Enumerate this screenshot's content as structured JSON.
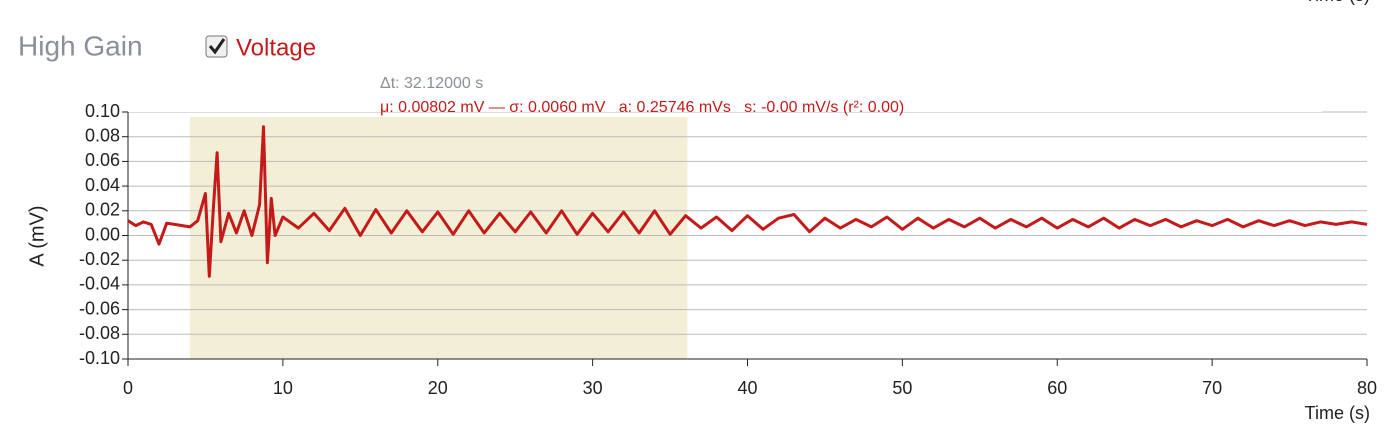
{
  "chart_data": {
    "type": "line",
    "title": "High Gain",
    "x_label": "Time (s)",
    "y_label": "A (mV)",
    "annotations": [
      "Δt: 32.12000 s",
      "μ: 0.00802 mV — σ: 0.0060 mV   a: 0.25746 mVs   s: -0.00 mV/s (r²: 0.00)"
    ],
    "selection": [
      4,
      36.12
    ],
    "xlim": [
      0,
      80
    ],
    "xticks": [
      0,
      10,
      20,
      30,
      40,
      50,
      60,
      70,
      80
    ],
    "ylim": [
      -0.1,
      0.1
    ],
    "yticks": [
      {
        "value": -0.1,
        "label": "-0.10"
      },
      {
        "value": -0.08,
        "label": "-0.08"
      },
      {
        "value": -0.06,
        "label": "-0.06"
      },
      {
        "value": -0.04,
        "label": "-0.04"
      },
      {
        "value": -0.02,
        "label": "-0.02"
      },
      {
        "value": 0,
        "label": "0.00"
      },
      {
        "value": 0.02,
        "label": "0.02"
      },
      {
        "value": 0.04,
        "label": "0.04"
      },
      {
        "value": 0.06,
        "label": "0.06"
      },
      {
        "value": 0.08,
        "label": "0.08"
      },
      {
        "value": 0.1,
        "label": "0.10"
      }
    ],
    "grid": true,
    "x": [
      0,
      0.5,
      1,
      1.5,
      2,
      2.5,
      3,
      3.5,
      4,
      4.5,
      5,
      5.25,
      5.5,
      5.75,
      6,
      6.5,
      7,
      7.5,
      8,
      8.5,
      8.75,
      9,
      9.25,
      9.5,
      10,
      11,
      12,
      13,
      14,
      15,
      16,
      17,
      18,
      19,
      20,
      21,
      22,
      23,
      24,
      25,
      26,
      27,
      28,
      29,
      30,
      31,
      32,
      33,
      34,
      35,
      36,
      37,
      38,
      39,
      40,
      41,
      42,
      43,
      44,
      45,
      46,
      47,
      48,
      49,
      50,
      51,
      52,
      53,
      54,
      55,
      56,
      57,
      58,
      59,
      60,
      61,
      62,
      63,
      64,
      65,
      66,
      67,
      68,
      69,
      70,
      71,
      72,
      73,
      74,
      75,
      76,
      77,
      78,
      79,
      80
    ],
    "series": [
      {
        "name": "Voltage",
        "color": "#c41a1a",
        "values": [
          0.012,
          0.008,
          0.011,
          0.009,
          -0.007,
          0.01,
          0.009,
          0.008,
          0.007,
          0.012,
          0.034,
          -0.033,
          0.02,
          0.067,
          -0.005,
          0.018,
          0.002,
          0.02,
          0.0,
          0.025,
          0.088,
          -0.022,
          0.03,
          0.0,
          0.015,
          0.006,
          0.018,
          0.004,
          0.022,
          0.0,
          0.021,
          0.002,
          0.02,
          0.003,
          0.019,
          0.001,
          0.02,
          0.002,
          0.018,
          0.003,
          0.019,
          0.002,
          0.02,
          0.001,
          0.018,
          0.003,
          0.019,
          0.002,
          0.02,
          0.001,
          0.016,
          0.006,
          0.015,
          0.004,
          0.016,
          0.005,
          0.014,
          0.017,
          0.003,
          0.014,
          0.006,
          0.013,
          0.007,
          0.015,
          0.005,
          0.014,
          0.006,
          0.013,
          0.007,
          0.014,
          0.006,
          0.013,
          0.007,
          0.014,
          0.006,
          0.013,
          0.007,
          0.014,
          0.006,
          0.013,
          0.008,
          0.013,
          0.007,
          0.012,
          0.008,
          0.013,
          0.007,
          0.012,
          0.008,
          0.012,
          0.008,
          0.011,
          0.009,
          0.011,
          0.009
        ]
      }
    ]
  }
}
